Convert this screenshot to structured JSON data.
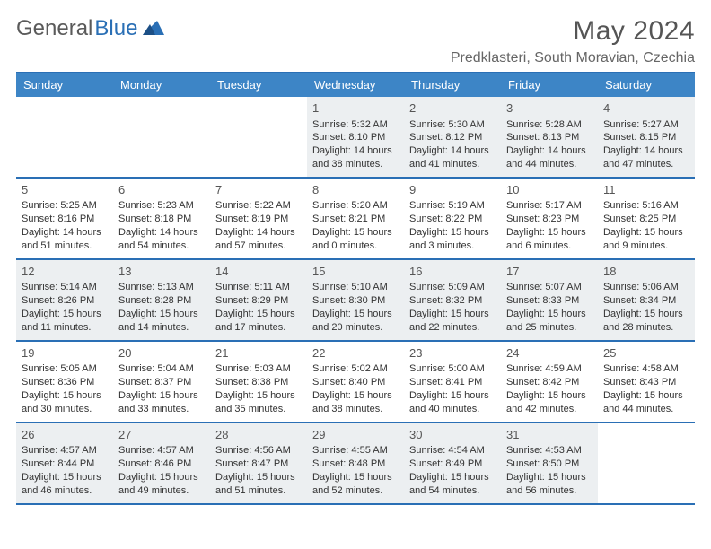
{
  "logo": {
    "word1": "General",
    "word2": "Blue"
  },
  "header": {
    "title": "May 2024",
    "location": "Predklasteri, South Moravian, Czechia"
  },
  "colors": {
    "header_bg": "#3d85c6",
    "border": "#2a6fb5",
    "shaded": "#eceff1",
    "text": "#333333",
    "title": "#555555"
  },
  "day_names": [
    "Sunday",
    "Monday",
    "Tuesday",
    "Wednesday",
    "Thursday",
    "Friday",
    "Saturday"
  ],
  "weeks": [
    [
      {
        "blank": true
      },
      {
        "blank": true
      },
      {
        "blank": true
      },
      {
        "num": "1",
        "sunrise": "Sunrise: 5:32 AM",
        "sunset": "Sunset: 8:10 PM",
        "day1": "Daylight: 14 hours",
        "day2": "and 38 minutes."
      },
      {
        "num": "2",
        "sunrise": "Sunrise: 5:30 AM",
        "sunset": "Sunset: 8:12 PM",
        "day1": "Daylight: 14 hours",
        "day2": "and 41 minutes."
      },
      {
        "num": "3",
        "sunrise": "Sunrise: 5:28 AM",
        "sunset": "Sunset: 8:13 PM",
        "day1": "Daylight: 14 hours",
        "day2": "and 44 minutes."
      },
      {
        "num": "4",
        "sunrise": "Sunrise: 5:27 AM",
        "sunset": "Sunset: 8:15 PM",
        "day1": "Daylight: 14 hours",
        "day2": "and 47 minutes."
      }
    ],
    [
      {
        "num": "5",
        "sunrise": "Sunrise: 5:25 AM",
        "sunset": "Sunset: 8:16 PM",
        "day1": "Daylight: 14 hours",
        "day2": "and 51 minutes."
      },
      {
        "num": "6",
        "sunrise": "Sunrise: 5:23 AM",
        "sunset": "Sunset: 8:18 PM",
        "day1": "Daylight: 14 hours",
        "day2": "and 54 minutes."
      },
      {
        "num": "7",
        "sunrise": "Sunrise: 5:22 AM",
        "sunset": "Sunset: 8:19 PM",
        "day1": "Daylight: 14 hours",
        "day2": "and 57 minutes."
      },
      {
        "num": "8",
        "sunrise": "Sunrise: 5:20 AM",
        "sunset": "Sunset: 8:21 PM",
        "day1": "Daylight: 15 hours",
        "day2": "and 0 minutes."
      },
      {
        "num": "9",
        "sunrise": "Sunrise: 5:19 AM",
        "sunset": "Sunset: 8:22 PM",
        "day1": "Daylight: 15 hours",
        "day2": "and 3 minutes."
      },
      {
        "num": "10",
        "sunrise": "Sunrise: 5:17 AM",
        "sunset": "Sunset: 8:23 PM",
        "day1": "Daylight: 15 hours",
        "day2": "and 6 minutes."
      },
      {
        "num": "11",
        "sunrise": "Sunrise: 5:16 AM",
        "sunset": "Sunset: 8:25 PM",
        "day1": "Daylight: 15 hours",
        "day2": "and 9 minutes."
      }
    ],
    [
      {
        "num": "12",
        "sunrise": "Sunrise: 5:14 AM",
        "sunset": "Sunset: 8:26 PM",
        "day1": "Daylight: 15 hours",
        "day2": "and 11 minutes."
      },
      {
        "num": "13",
        "sunrise": "Sunrise: 5:13 AM",
        "sunset": "Sunset: 8:28 PM",
        "day1": "Daylight: 15 hours",
        "day2": "and 14 minutes."
      },
      {
        "num": "14",
        "sunrise": "Sunrise: 5:11 AM",
        "sunset": "Sunset: 8:29 PM",
        "day1": "Daylight: 15 hours",
        "day2": "and 17 minutes."
      },
      {
        "num": "15",
        "sunrise": "Sunrise: 5:10 AM",
        "sunset": "Sunset: 8:30 PM",
        "day1": "Daylight: 15 hours",
        "day2": "and 20 minutes."
      },
      {
        "num": "16",
        "sunrise": "Sunrise: 5:09 AM",
        "sunset": "Sunset: 8:32 PM",
        "day1": "Daylight: 15 hours",
        "day2": "and 22 minutes."
      },
      {
        "num": "17",
        "sunrise": "Sunrise: 5:07 AM",
        "sunset": "Sunset: 8:33 PM",
        "day1": "Daylight: 15 hours",
        "day2": "and 25 minutes."
      },
      {
        "num": "18",
        "sunrise": "Sunrise: 5:06 AM",
        "sunset": "Sunset: 8:34 PM",
        "day1": "Daylight: 15 hours",
        "day2": "and 28 minutes."
      }
    ],
    [
      {
        "num": "19",
        "sunrise": "Sunrise: 5:05 AM",
        "sunset": "Sunset: 8:36 PM",
        "day1": "Daylight: 15 hours",
        "day2": "and 30 minutes."
      },
      {
        "num": "20",
        "sunrise": "Sunrise: 5:04 AM",
        "sunset": "Sunset: 8:37 PM",
        "day1": "Daylight: 15 hours",
        "day2": "and 33 minutes."
      },
      {
        "num": "21",
        "sunrise": "Sunrise: 5:03 AM",
        "sunset": "Sunset: 8:38 PM",
        "day1": "Daylight: 15 hours",
        "day2": "and 35 minutes."
      },
      {
        "num": "22",
        "sunrise": "Sunrise: 5:02 AM",
        "sunset": "Sunset: 8:40 PM",
        "day1": "Daylight: 15 hours",
        "day2": "and 38 minutes."
      },
      {
        "num": "23",
        "sunrise": "Sunrise: 5:00 AM",
        "sunset": "Sunset: 8:41 PM",
        "day1": "Daylight: 15 hours",
        "day2": "and 40 minutes."
      },
      {
        "num": "24",
        "sunrise": "Sunrise: 4:59 AM",
        "sunset": "Sunset: 8:42 PM",
        "day1": "Daylight: 15 hours",
        "day2": "and 42 minutes."
      },
      {
        "num": "25",
        "sunrise": "Sunrise: 4:58 AM",
        "sunset": "Sunset: 8:43 PM",
        "day1": "Daylight: 15 hours",
        "day2": "and 44 minutes."
      }
    ],
    [
      {
        "num": "26",
        "sunrise": "Sunrise: 4:57 AM",
        "sunset": "Sunset: 8:44 PM",
        "day1": "Daylight: 15 hours",
        "day2": "and 46 minutes."
      },
      {
        "num": "27",
        "sunrise": "Sunrise: 4:57 AM",
        "sunset": "Sunset: 8:46 PM",
        "day1": "Daylight: 15 hours",
        "day2": "and 49 minutes."
      },
      {
        "num": "28",
        "sunrise": "Sunrise: 4:56 AM",
        "sunset": "Sunset: 8:47 PM",
        "day1": "Daylight: 15 hours",
        "day2": "and 51 minutes."
      },
      {
        "num": "29",
        "sunrise": "Sunrise: 4:55 AM",
        "sunset": "Sunset: 8:48 PM",
        "day1": "Daylight: 15 hours",
        "day2": "and 52 minutes."
      },
      {
        "num": "30",
        "sunrise": "Sunrise: 4:54 AM",
        "sunset": "Sunset: 8:49 PM",
        "day1": "Daylight: 15 hours",
        "day2": "and 54 minutes."
      },
      {
        "num": "31",
        "sunrise": "Sunrise: 4:53 AM",
        "sunset": "Sunset: 8:50 PM",
        "day1": "Daylight: 15 hours",
        "day2": "and 56 minutes."
      },
      {
        "blank": true
      }
    ]
  ]
}
